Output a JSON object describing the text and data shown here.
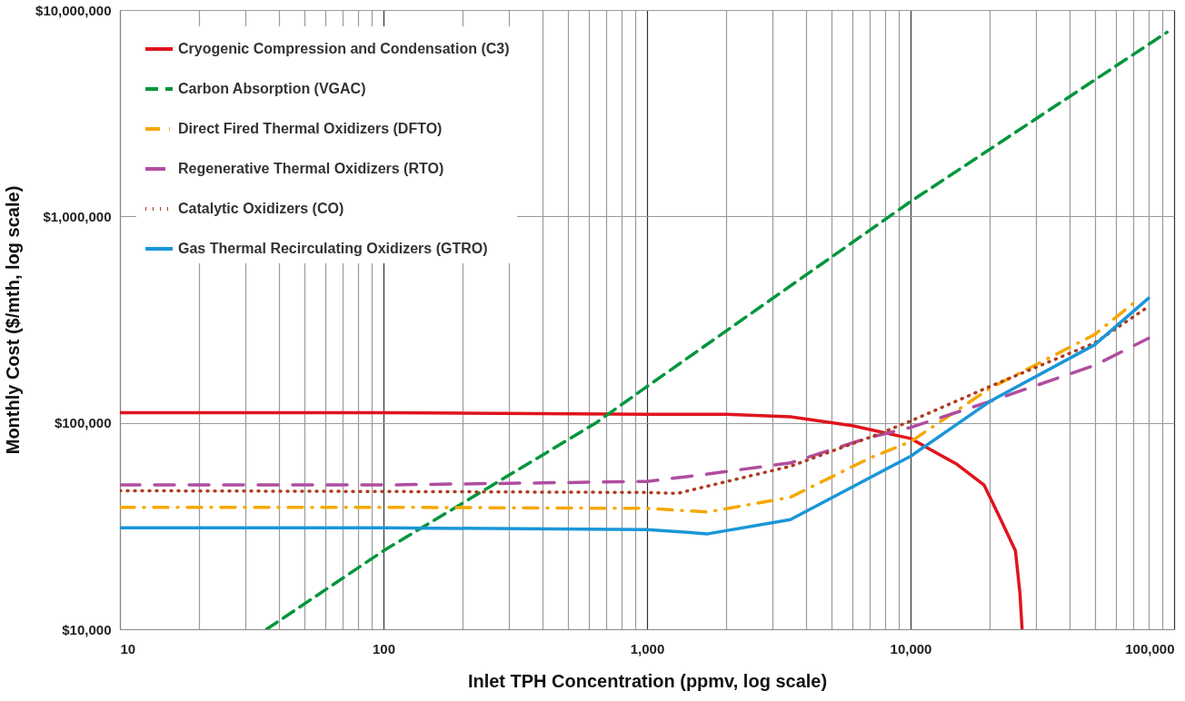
{
  "chart_data": {
    "type": "line",
    "xlabel": "Inlet TPH Concentration (ppmv, log scale)",
    "ylabel": "Monthly Cost ($/mth, log scale)",
    "log": "xy",
    "grid": true,
    "legend": "top left",
    "xlim": [
      10,
      100000
    ],
    "ylim": [
      10000,
      10000000
    ],
    "xticks": [
      {
        "value": 10,
        "label": "10"
      },
      {
        "value": 20,
        "label": null
      },
      {
        "value": 30,
        "label": null
      },
      {
        "value": 40,
        "label": null
      },
      {
        "value": 50,
        "label": null
      },
      {
        "value": 60,
        "label": null
      },
      {
        "value": 70,
        "label": null
      },
      {
        "value": 80,
        "label": null
      },
      {
        "value": 90,
        "label": null
      },
      {
        "value": 100,
        "label": "100"
      },
      {
        "value": 200,
        "label": null
      },
      {
        "value": 300,
        "label": null
      },
      {
        "value": 400,
        "label": null
      },
      {
        "value": 500,
        "label": null
      },
      {
        "value": 600,
        "label": null
      },
      {
        "value": 700,
        "label": null
      },
      {
        "value": 800,
        "label": null
      },
      {
        "value": 900,
        "label": null
      },
      {
        "value": 1000,
        "label": "1,000"
      },
      {
        "value": 2000,
        "label": null
      },
      {
        "value": 3000,
        "label": null
      },
      {
        "value": 4000,
        "label": null
      },
      {
        "value": 5000,
        "label": null
      },
      {
        "value": 6000,
        "label": null
      },
      {
        "value": 7000,
        "label": null
      },
      {
        "value": 8000,
        "label": null
      },
      {
        "value": 9000,
        "label": null
      },
      {
        "value": 10000,
        "label": "10,000"
      },
      {
        "value": 20000,
        "label": null
      },
      {
        "value": 30000,
        "label": null
      },
      {
        "value": 40000,
        "label": null
      },
      {
        "value": 50000,
        "label": null
      },
      {
        "value": 60000,
        "label": null
      },
      {
        "value": 70000,
        "label": null
      },
      {
        "value": 80000,
        "label": null
      },
      {
        "value": 90000,
        "label": null
      },
      {
        "value": 100000,
        "label": "100,000"
      }
    ],
    "yticks": [
      {
        "value": 10000,
        "label": "$10,000"
      },
      {
        "value": 100000,
        "label": "$100,000"
      },
      {
        "value": 1000000,
        "label": "$1,000,000"
      },
      {
        "value": 10000000,
        "label": "$10,000,000"
      }
    ],
    "series": [
      {
        "name": "Cryogenic Compression and Condensation (C3)",
        "color": "#e0141e",
        "line_style": "solid",
        "x": [
          10,
          100,
          1000,
          2000,
          3500,
          6000,
          10000,
          15000,
          19000,
          22000,
          25000,
          26000,
          26500
        ],
        "values": [
          112000,
          112000,
          110000,
          110000,
          107000,
          97000,
          84000,
          63000,
          50000,
          34000,
          24000,
          15000,
          10000
        ]
      },
      {
        "name": "Carbon Absorption (VGAC)",
        "color": "#00963c",
        "line_style": "dashed",
        "x": [
          36,
          100,
          640,
          1000,
          10000,
          94000
        ],
        "values": [
          10000,
          24000,
          100000,
          150000,
          1180000,
          7800000
        ]
      },
      {
        "name": "Direct Fired Thermal Oxidizers (DFTO)",
        "color": "#f5a800",
        "line_style": "dashdot",
        "x": [
          10,
          100,
          1000,
          1700,
          3500,
          7000,
          10000,
          20000,
          50000,
          71000
        ],
        "values": [
          39000,
          39000,
          38500,
          37000,
          43600,
          67500,
          81000,
          147000,
          268000,
          385000
        ]
      },
      {
        "name": "Regenerative Thermal Oxidizers (RTO)",
        "color": "#b04d9f",
        "line_style": "longdash",
        "x": [
          10,
          100,
          1000,
          1700,
          3500,
          7000,
          10000,
          20000,
          50000,
          80000
        ],
        "values": [
          50000,
          50000,
          52000,
          56500,
          64000,
          85000,
          95000,
          127000,
          190000,
          257000
        ]
      },
      {
        "name": "Catalytic Oxidizers (CO)",
        "color": "#b03a20",
        "line_style": "dotted",
        "x": [
          10,
          100,
          1000,
          1300,
          3500,
          7000,
          10000,
          20000,
          50000,
          80000
        ],
        "values": [
          46900,
          46500,
          46000,
          45500,
          61600,
          85000,
          102000,
          150000,
          244000,
          366000
        ]
      },
      {
        "name": "Gas Thermal Recirculating Oxidizers (GTRO)",
        "color": "#1a96d8",
        "line_style": "solid",
        "x": [
          10,
          100,
          1000,
          1700,
          3500,
          10000,
          20000,
          50000,
          80000
        ],
        "values": [
          31000,
          31000,
          30400,
          29000,
          34000,
          68900,
          127000,
          239000,
          402000
        ]
      }
    ]
  }
}
